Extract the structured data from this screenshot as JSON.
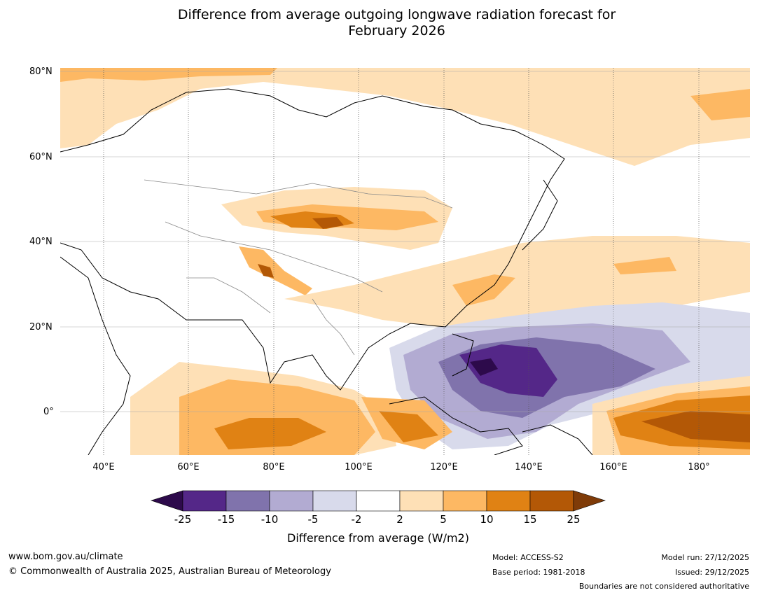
{
  "title": {
    "line1": "Difference from average outgoing longwave radiation forecast for",
    "line2": "February 2026"
  },
  "axes": {
    "lat_labels": [
      "80°N",
      "60°N",
      "40°N",
      "20°N",
      "0°"
    ],
    "lon_labels": [
      "40°E",
      "60°E",
      "80°E",
      "100°E",
      "120°E",
      "140°E",
      "160°E",
      "180°"
    ]
  },
  "colorbar": {
    "title": "Difference from average (W/m2)",
    "ticks": [
      "-25",
      "-15",
      "-10",
      "-5",
      "-2",
      "2",
      "5",
      "10",
      "15",
      "25"
    ],
    "colors": {
      "lt_-25": "#2d0a4b",
      "-25_-15": "#542788",
      "-15_-10": "#8073ac",
      "-10_-5": "#b2abd2",
      "-5_-2": "#d8daeb",
      "-2_2": "#ffffff",
      "2_5": "#fee0b6",
      "5_10": "#fdb863",
      "10_15": "#e08214",
      "15_25": "#b35806",
      "gt_25": "#7f3b08"
    }
  },
  "footer": {
    "website": "www.bom.gov.au/climate",
    "copyright": "© Commonwealth of Australia 2025, Australian Bureau of Meteorology",
    "model": "Model: ACCESS-S2",
    "base_period": "Base period: 1981-2018",
    "model_run": "Model run: 27/12/2025",
    "issued": "Issued: 29/12/2025",
    "disclaimer": "Boundaries are not considered authoritative"
  }
}
